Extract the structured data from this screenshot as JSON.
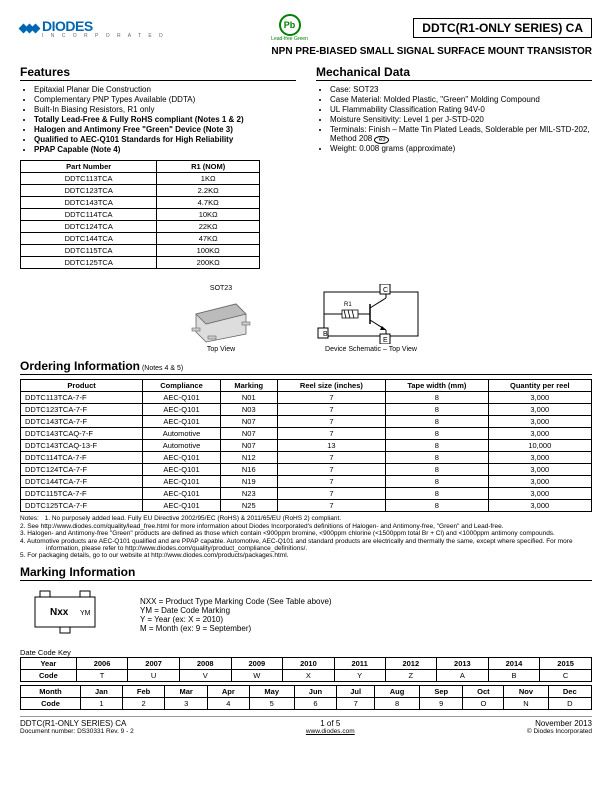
{
  "header": {
    "logo_text": "DIODES",
    "logo_sub": "I N C O R P O R A T E D",
    "pb_label": "Pb",
    "pb_sub": "Lead-free Green",
    "title": "DDTC(R1-ONLY SERIES) CA",
    "subtitle": "NPN PRE-BIASED SMALL SIGNAL SURFACE MOUNT TRANSISTOR"
  },
  "features": {
    "heading": "Features",
    "items": [
      {
        "text": "Epitaxial Planar Die Construction",
        "bold": false
      },
      {
        "text": "Complementary PNP Types Available (DDTA)",
        "bold": false
      },
      {
        "text": "Built-In Biasing Resistors, R1 only",
        "bold": false
      },
      {
        "text": "Totally Lead-Free & Fully RoHS compliant (Notes 1 & 2)",
        "bold": true
      },
      {
        "text": "Halogen and Antimony Free \"Green\" Device (Note 3)",
        "bold": true
      },
      {
        "text": "Qualified to AEC-Q101 Standards for High Reliability",
        "bold": true
      },
      {
        "text": "PPAP Capable (Note 4)",
        "bold": true
      }
    ]
  },
  "mechanical": {
    "heading": "Mechanical Data",
    "items": [
      "Case: SOT23",
      "Case Material: Molded Plastic, \"Green\" Molding Compound",
      "UL Flammability Classification Rating 94V-0",
      "Moisture Sensitivity:  Level 1 per J-STD-020",
      "Terminals: Finish – Matte Tin Plated Leads, Solderable per MIL-STD-202, Method 208",
      "Weight: 0.008 grams (approximate)"
    ],
    "e3_badge": "e3"
  },
  "r1_table": {
    "cols": [
      "Part Number",
      "R1 (NOM)"
    ],
    "rows": [
      [
        "DDTC113TCA",
        "1KΩ"
      ],
      [
        "DDTC123TCA",
        "2.2KΩ"
      ],
      [
        "DDTC143TCA",
        "4.7KΩ"
      ],
      [
        "DDTC114TCA",
        "10KΩ"
      ],
      [
        "DDTC124TCA",
        "22KΩ"
      ],
      [
        "DDTC144TCA",
        "47KΩ"
      ],
      [
        "DDTC115TCA",
        "100KΩ"
      ],
      [
        "DDTC125TCA",
        "200KΩ"
      ]
    ]
  },
  "package": {
    "label": "SOT23",
    "topview": "Top View",
    "schematic": "Device Schematic – Top View",
    "pins": {
      "B": "B",
      "C": "C",
      "E": "E",
      "R1": "R1"
    }
  },
  "ordering": {
    "heading": "Ordering Information",
    "note": " (Notes 4 & 5)",
    "cols": [
      "Product",
      "Compliance",
      "Marking",
      "Reel size (inches)",
      "Tape width (mm)",
      "Quantity per reel"
    ],
    "rows": [
      [
        "DDTC113TCA-7-F",
        "AEC-Q101",
        "N01",
        "7",
        "8",
        "3,000"
      ],
      [
        "DDTC123TCA-7-F",
        "AEC-Q101",
        "N03",
        "7",
        "8",
        "3,000"
      ],
      [
        "DDTC143TCA-7-F",
        "AEC-Q101",
        "N07",
        "7",
        "8",
        "3,000"
      ],
      [
        "DDTC143TCAQ-7-F",
        "Automotive",
        "N07",
        "7",
        "8",
        "3,000"
      ],
      [
        "DDTC143TCAQ-13-F",
        "Automotive",
        "N07",
        "13",
        "8",
        "10,000"
      ],
      [
        "DDTC114TCA-7-F",
        "AEC-Q101",
        "N12",
        "7",
        "8",
        "3,000"
      ],
      [
        "DDTC124TCA-7-F",
        "AEC-Q101",
        "N16",
        "7",
        "8",
        "3,000"
      ],
      [
        "DDTC144TCA-7-F",
        "AEC-Q101",
        "N19",
        "7",
        "8",
        "3,000"
      ],
      [
        "DDTC115TCA-7-F",
        "AEC-Q101",
        "N23",
        "7",
        "8",
        "3,000"
      ],
      [
        "DDTC125TCA-7-F",
        "AEC-Q101",
        "N25",
        "7",
        "8",
        "3,000"
      ]
    ]
  },
  "notes": [
    "1. No purposely added lead. Fully EU Directive 2002/95/EC (RoHS) & 2011/65/EU (RoHS 2) compliant.",
    "2. See http://www.diodes.com/quality/lead_free.html for more information about Diodes Incorporated's definitions of Halogen- and Antimony-free, \"Green\" and Lead-free.",
    "3. Halogen- and Antimony-free \"Green\" products are defined as those which contain <900ppm bromine, <900ppm chlorine (<1500ppm total Br + Cl) and <1000ppm antimony compounds.",
    "4. Automotive products are AEC-Q101 qualified and are PPAP capable.   Automotive, AEC-Q101 and standard products are electrically and thermally the same, except where specified. For more information, please refer to http://www.diodes.com/quality/product_compliance_definitions/.",
    "5. For packaging details, go to our website at http://www.diodes.com/products/packages.html."
  ],
  "notes_label": "Notes:",
  "marking": {
    "heading": "Marking Information",
    "chip_top": "Nxx",
    "chip_side": "YM",
    "legend": [
      "NXX = Product Type Marking Code (See Table above)",
      "YM = Date Code Marking",
      "Y = Year (ex: X = 2010)",
      "M = Month (ex: 9 = September)"
    ]
  },
  "datecode": {
    "label": "Date Code Key",
    "year_row": [
      "Year",
      "2006",
      "2007",
      "2008",
      "2009",
      "2010",
      "2011",
      "2012",
      "2013",
      "2014",
      "2015"
    ],
    "year_code": [
      "Code",
      "T",
      "U",
      "V",
      "W",
      "X",
      "Y",
      "Z",
      "A",
      "B",
      "C"
    ],
    "month_row": [
      "Month",
      "Jan",
      "Feb",
      "Mar",
      "Apr",
      "May",
      "Jun",
      "Jul",
      "Aug",
      "Sep",
      "Oct",
      "Nov",
      "Dec"
    ],
    "month_code": [
      "Code",
      "1",
      "2",
      "3",
      "4",
      "5",
      "6",
      "7",
      "8",
      "9",
      "O",
      "N",
      "D"
    ]
  },
  "footer": {
    "left1": "DDTC(R1-ONLY SERIES) CA",
    "left2": "Document number: DS30331 Rev. 9 - 2",
    "center": "1 of 5",
    "center2": "www.diodes.com",
    "right1": "November 2013",
    "right2": "© Diodes Incorporated"
  }
}
